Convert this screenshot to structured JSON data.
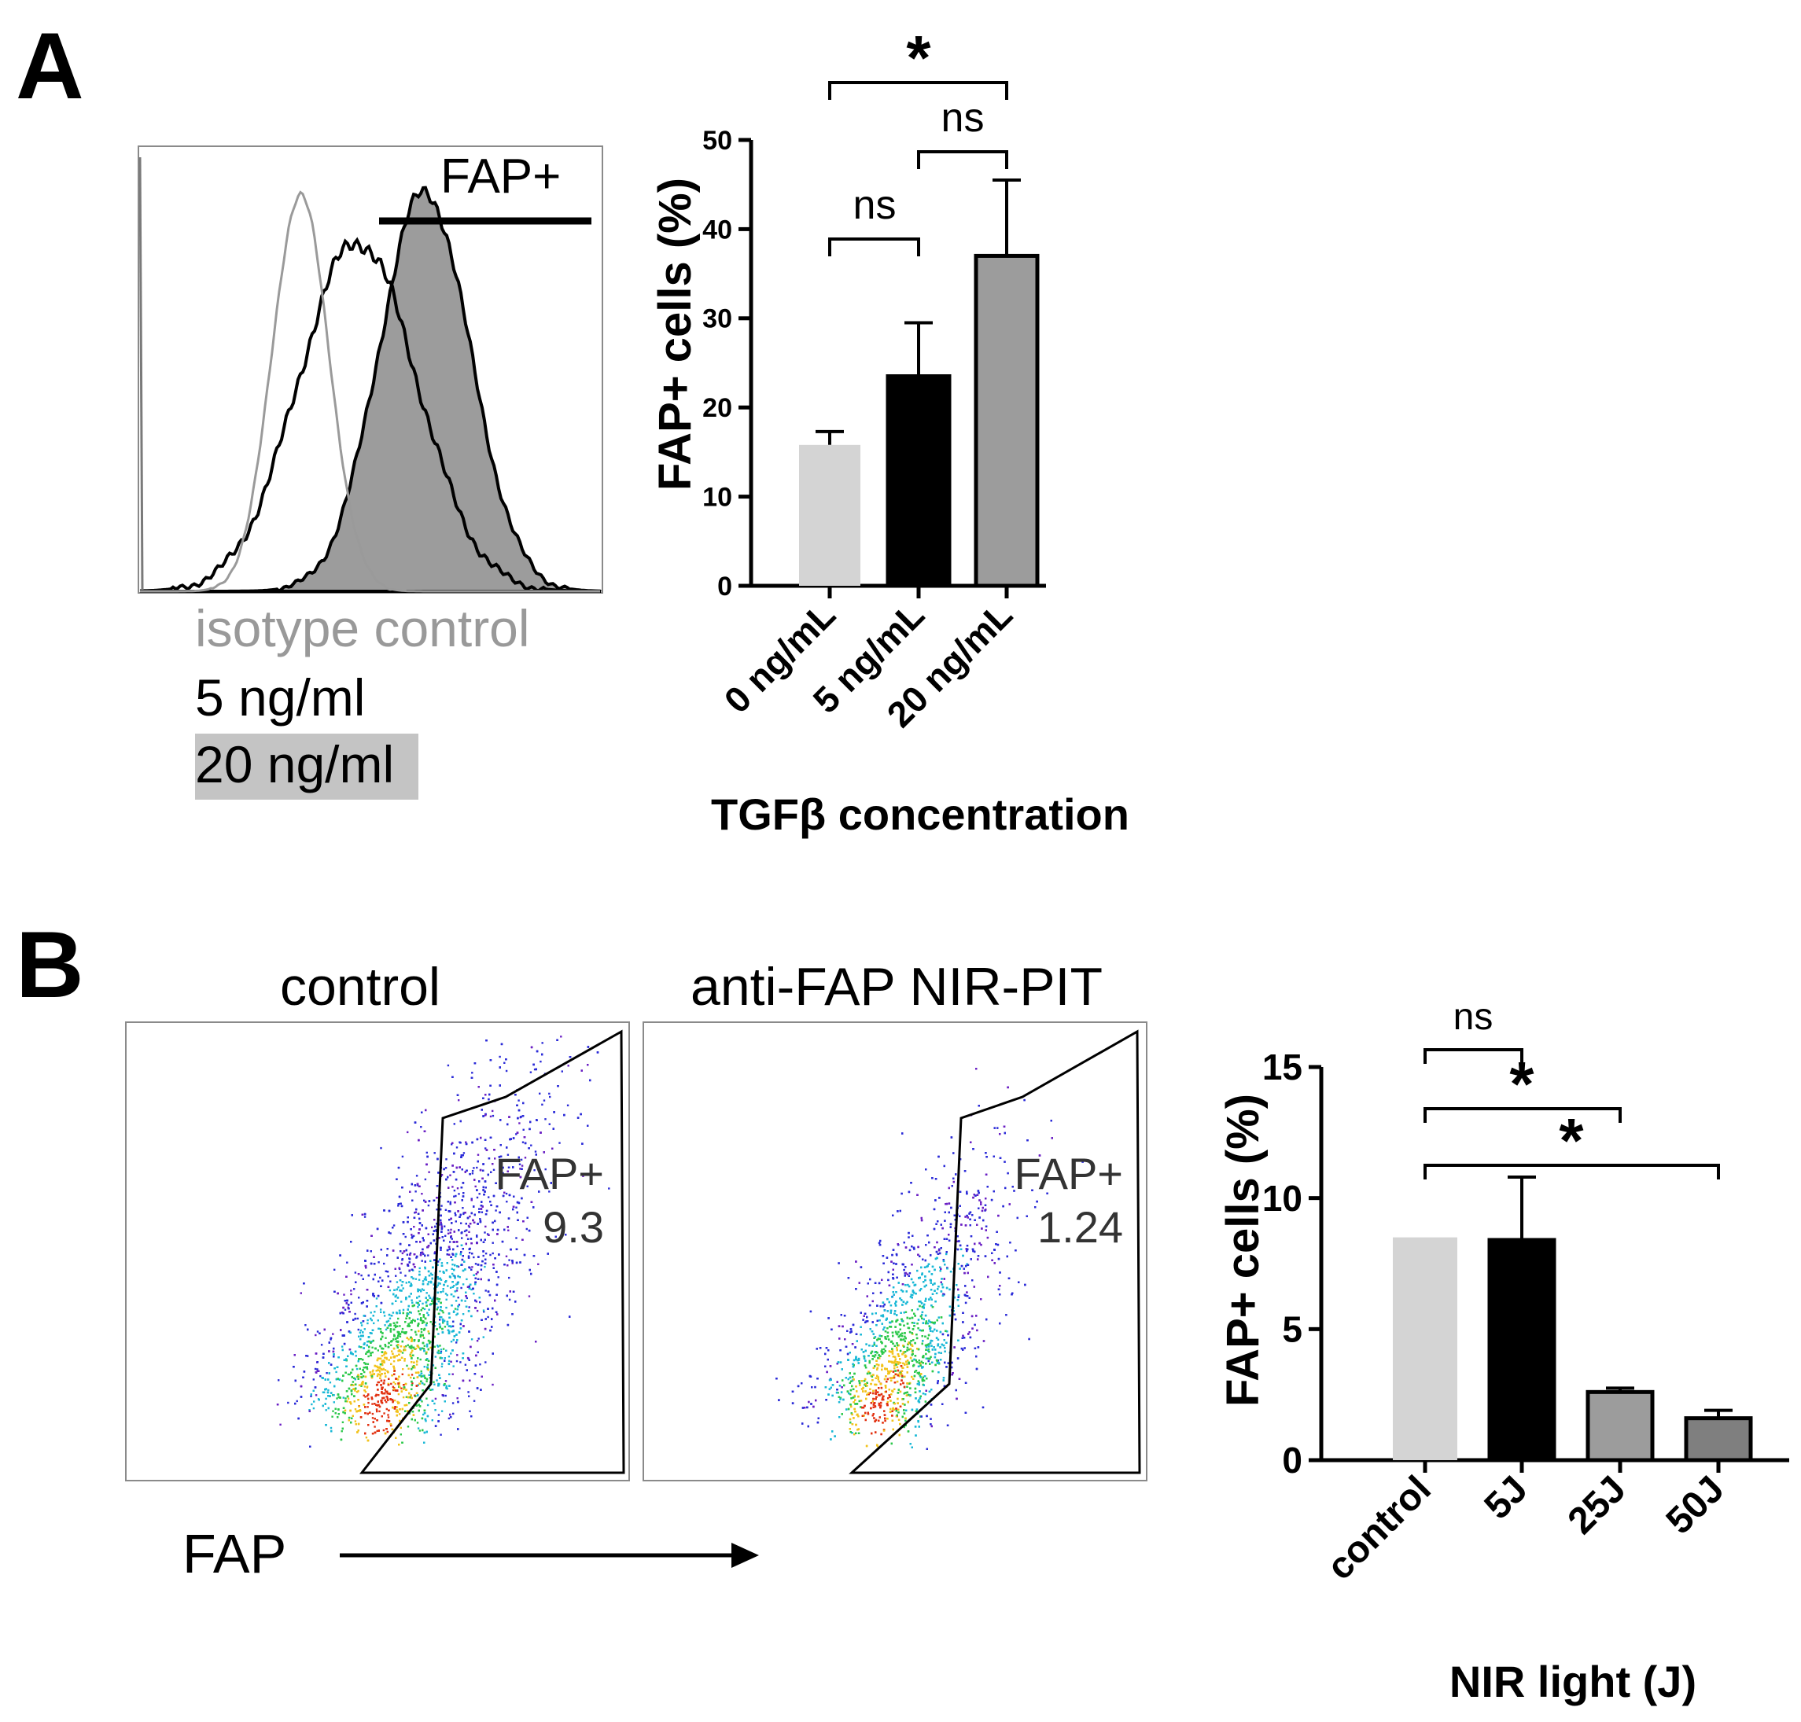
{
  "colors": {
    "isotype": "#999999",
    "dark": "#000000",
    "gray_light": "#d4d4d4",
    "gray_mid": "#9c9c9c",
    "gray_dark": "#7f7f7f",
    "legend_highlight": "#c4c4c4"
  },
  "panelA": {
    "letter": "A",
    "histogram": {
      "gate_label": "FAP+",
      "legend": [
        "isotype control",
        "5 ng/ml",
        "20 ng/ml"
      ]
    },
    "bar": {
      "ylabel": "FAP+ cells (%)",
      "xlabel": "TGFβ concentration",
      "sig": [
        {
          "text": "ns",
          "from": 0,
          "to": 1
        },
        {
          "text": "ns",
          "from": 1,
          "to": 2
        },
        {
          "text": "*",
          "from": 0,
          "to": 2
        }
      ]
    }
  },
  "panelB": {
    "letter": "B",
    "plots": [
      {
        "title": "control",
        "gate_label": "FAP+",
        "gate_value": "9.3"
      },
      {
        "title": "anti-FAP NIR-PIT",
        "gate_label": "FAP+",
        "gate_value": "1.24"
      }
    ],
    "axis_label": "FAP",
    "bar": {
      "ylabel": "FAP+ cells (%)",
      "xlabel": "NIR light (J)",
      "sig": [
        {
          "text": "ns",
          "from": 0,
          "to": 1
        },
        {
          "text": "*",
          "from": 0,
          "to": 2
        },
        {
          "text": "*",
          "from": 0,
          "to": 3
        }
      ]
    }
  },
  "chart_data": [
    {
      "type": "bar",
      "title": "",
      "categories": [
        "0 ng/mL",
        "5 ng/mL",
        "20 ng/mL"
      ],
      "values": [
        15.8,
        23.5,
        37.0
      ],
      "errors": [
        1.5,
        6.0,
        8.5
      ],
      "bar_colors": [
        "#d4d4d4",
        "#000000",
        "#9c9c9c"
      ],
      "xlabel": "TGFβ concentration",
      "ylabel": "FAP+ cells (%)",
      "ylim": [
        0,
        50
      ],
      "yticks": [
        0,
        10,
        20,
        30,
        40,
        50
      ],
      "grid": false
    },
    {
      "type": "bar",
      "title": "",
      "categories": [
        "control",
        "5J",
        "25J",
        "50J"
      ],
      "values": [
        8.5,
        8.4,
        2.6,
        1.6
      ],
      "errors": [
        0,
        2.4,
        0.15,
        0.3
      ],
      "bar_colors": [
        "#d4d4d4",
        "#000000",
        "#9c9c9c",
        "#7f7f7f"
      ],
      "xlabel": "NIR light (J)",
      "ylabel": "FAP+ cells (%)",
      "ylim": [
        0,
        15
      ],
      "yticks": [
        0,
        5,
        10,
        15
      ],
      "grid": false
    }
  ]
}
